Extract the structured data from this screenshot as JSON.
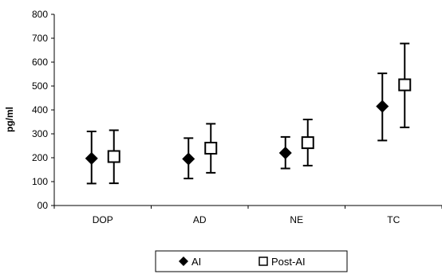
{
  "chart_data": {
    "type": "scatter",
    "title": "",
    "xlabel": "",
    "ylabel": "pg/ml",
    "ylim": [
      0,
      800
    ],
    "yticks": [
      0,
      100,
      200,
      300,
      400,
      500,
      600,
      700,
      800
    ],
    "ytick_labels": [
      "00",
      "100",
      "200",
      "300",
      "400",
      "500",
      "600",
      "700",
      "800"
    ],
    "categories": [
      "DOP",
      "AD",
      "NE",
      "TC"
    ],
    "grid": false,
    "legend_position": "bottom",
    "series": [
      {
        "name": "AI",
        "marker": "diamond-filled",
        "color": "#000000",
        "values": [
          197,
          195,
          220,
          415
        ],
        "err_low": [
          92,
          113,
          155,
          272
        ],
        "err_high": [
          310,
          282,
          287,
          553
        ]
      },
      {
        "name": "Post-AI",
        "marker": "square-open",
        "color": "#000000",
        "values": [
          205,
          240,
          263,
          505
        ],
        "err_low": [
          93,
          137,
          167,
          327
        ],
        "err_high": [
          315,
          342,
          360,
          678
        ]
      }
    ]
  }
}
